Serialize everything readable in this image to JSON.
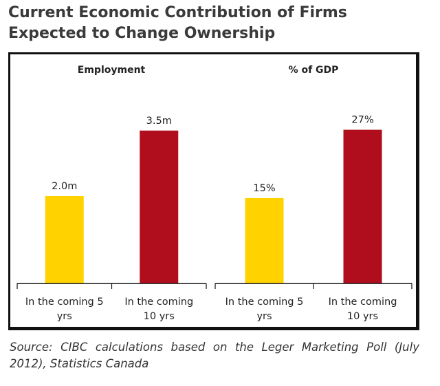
{
  "title_lines": [
    "Current Economic Contribution of Firms",
    "Expected to Change Ownership"
  ],
  "source_lines": [
    "Source: CIBC calculations based on the Leger Marketing Poll (July",
    "2012), Statistics Canada"
  ],
  "colors": {
    "short_term": "#FFD200",
    "long_term": "#B00D1D",
    "frame": "#111111",
    "text": "#222222"
  },
  "chart_data": [
    {
      "type": "bar",
      "title": "Employment",
      "categories": [
        [
          "In the coming 5",
          "yrs"
        ],
        [
          "In the coming",
          "10 yrs"
        ]
      ],
      "values": [
        2.0,
        3.5
      ],
      "unit": "millions",
      "data_labels": [
        "2.0m",
        "3.5m"
      ],
      "ylim": [
        0,
        4.0
      ]
    },
    {
      "type": "bar",
      "title": "% of GDP",
      "categories": [
        [
          "In the coming 5",
          "yrs"
        ],
        [
          "In the coming",
          "10 yrs"
        ]
      ],
      "values": [
        15,
        27
      ],
      "unit": "percent",
      "data_labels": [
        "15%",
        "27%"
      ],
      "ylim": [
        0,
        30.7
      ]
    }
  ]
}
